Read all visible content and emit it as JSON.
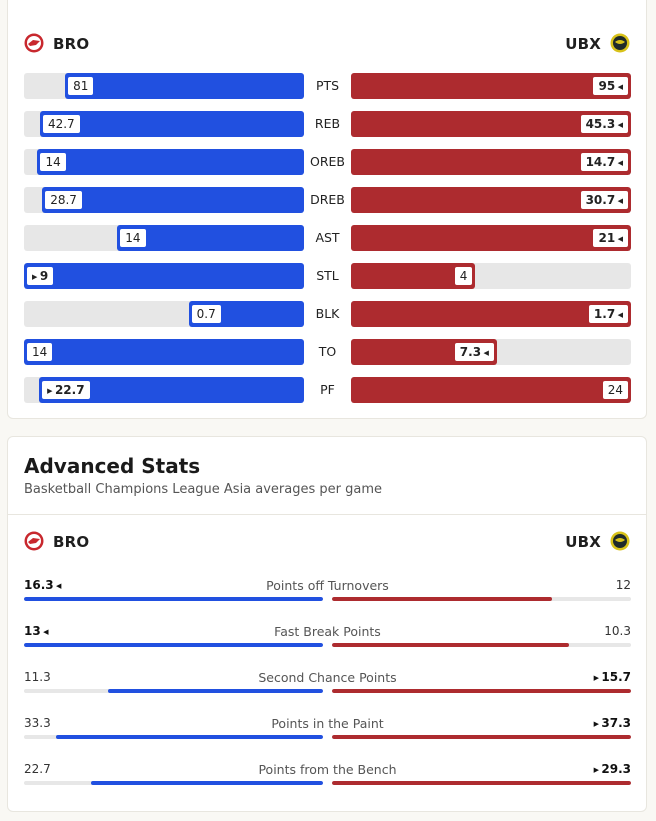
{
  "colors": {
    "home": "#2150e0",
    "away": "#ad2b2f",
    "track": "#e7e7e7"
  },
  "home_team": {
    "abbr": "BRO",
    "logo_icon": "bro-team-logo"
  },
  "away_team": {
    "abbr": "UBX",
    "logo_icon": "ubx-team-logo"
  },
  "comparison": {
    "rows": [
      {
        "label": "PTS",
        "home": "81",
        "away": "95",
        "home_pct": 0.853,
        "away_pct": 1.0,
        "leader": "away",
        "marker": "left-arrow"
      },
      {
        "label": "REB",
        "home": "42.7",
        "away": "45.3",
        "home_pct": 0.943,
        "away_pct": 1.0,
        "leader": "away",
        "marker": "left-arrow"
      },
      {
        "label": "OREB",
        "home": "14",
        "away": "14.7",
        "home_pct": 0.952,
        "away_pct": 1.0,
        "leader": "away",
        "marker": "left-arrow"
      },
      {
        "label": "DREB",
        "home": "28.7",
        "away": "30.7",
        "home_pct": 0.935,
        "away_pct": 1.0,
        "leader": "away",
        "marker": "left-arrow"
      },
      {
        "label": "AST",
        "home": "14",
        "away": "21",
        "home_pct": 0.667,
        "away_pct": 1.0,
        "leader": "away",
        "marker": "left-arrow"
      },
      {
        "label": "STL",
        "home": "9",
        "away": "4",
        "home_pct": 1.0,
        "away_pct": 0.444,
        "leader": "home",
        "marker": "right-arrow"
      },
      {
        "label": "BLK",
        "home": "0.7",
        "away": "1.7",
        "home_pct": 0.412,
        "away_pct": 1.0,
        "leader": "away",
        "marker": "left-arrow"
      },
      {
        "label": "TO",
        "home": "14",
        "away": "7.3",
        "home_pct": 1.0,
        "away_pct": 0.521,
        "leader": "away",
        "marker": "left-arrow"
      },
      {
        "label": "PF",
        "home": "22.7",
        "away": "24",
        "home_pct": 0.946,
        "away_pct": 1.0,
        "leader": "home",
        "marker": "right-arrow"
      }
    ]
  },
  "advanced": {
    "title": "Advanced Stats",
    "subtitle": "Basketball Champions League Asia averages per game",
    "rows": [
      {
        "label": "Points off Turnovers",
        "home": "16.3",
        "away": "12",
        "home_pct": 1.0,
        "away_pct": 0.736,
        "leader": "home"
      },
      {
        "label": "Fast Break Points",
        "home": "13",
        "away": "10.3",
        "home_pct": 1.0,
        "away_pct": 0.792,
        "leader": "home"
      },
      {
        "label": "Second Chance Points",
        "home": "11.3",
        "away": "15.7",
        "home_pct": 0.72,
        "away_pct": 1.0,
        "leader": "away"
      },
      {
        "label": "Points in the Paint",
        "home": "33.3",
        "away": "37.3",
        "home_pct": 0.893,
        "away_pct": 1.0,
        "leader": "away"
      },
      {
        "label": "Points from the Bench",
        "home": "22.7",
        "away": "29.3",
        "home_pct": 0.775,
        "away_pct": 1.0,
        "leader": "away"
      }
    ]
  }
}
